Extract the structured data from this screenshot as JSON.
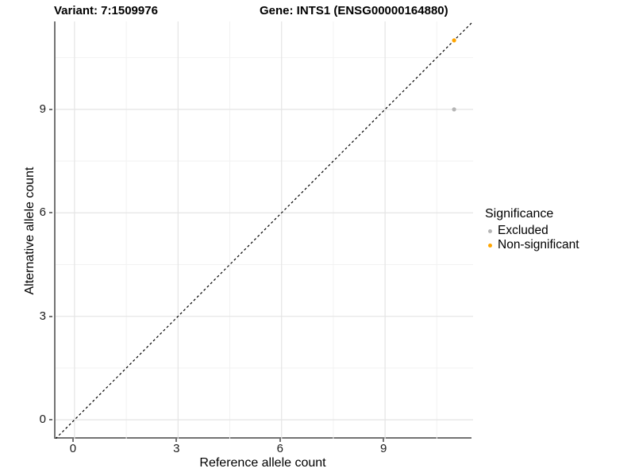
{
  "header": {
    "variant_title": "Variant: 7:1509976",
    "gene_title": "Gene: INTS1 (ENSG00000164880)"
  },
  "chart_data": {
    "type": "scatter",
    "xlabel": "Reference allele count",
    "ylabel": "Alternative allele count",
    "xlim": [
      -0.55,
      11.55
    ],
    "ylim": [
      -0.55,
      11.55
    ],
    "x_ticks": [
      0,
      3,
      6,
      9
    ],
    "y_ticks": [
      0,
      3,
      6,
      9
    ],
    "x_minor_ticks": [
      1.5,
      4.5,
      7.5,
      10.5
    ],
    "y_minor_ticks": [
      1.5,
      4.5,
      7.5,
      10.5
    ],
    "grid": true,
    "identity_line": {
      "style": "dashed",
      "color": "#000000",
      "from": [
        -0.55,
        -0.55
      ],
      "to": [
        11.55,
        11.55
      ]
    },
    "series": [
      {
        "name": "Excluded",
        "color": "#b5b5b5",
        "points": [
          [
            11,
            9
          ]
        ]
      },
      {
        "name": "Non-significant",
        "color": "#ffa500",
        "points": [
          [
            11,
            11
          ]
        ]
      }
    ],
    "legend": {
      "title": "Significance",
      "position": "right"
    }
  },
  "style_colors": {
    "major_grid": "#e4e4e4",
    "minor_grid": "#f2f2f2",
    "axis_line": "#737373",
    "point_radius": 2.6
  }
}
